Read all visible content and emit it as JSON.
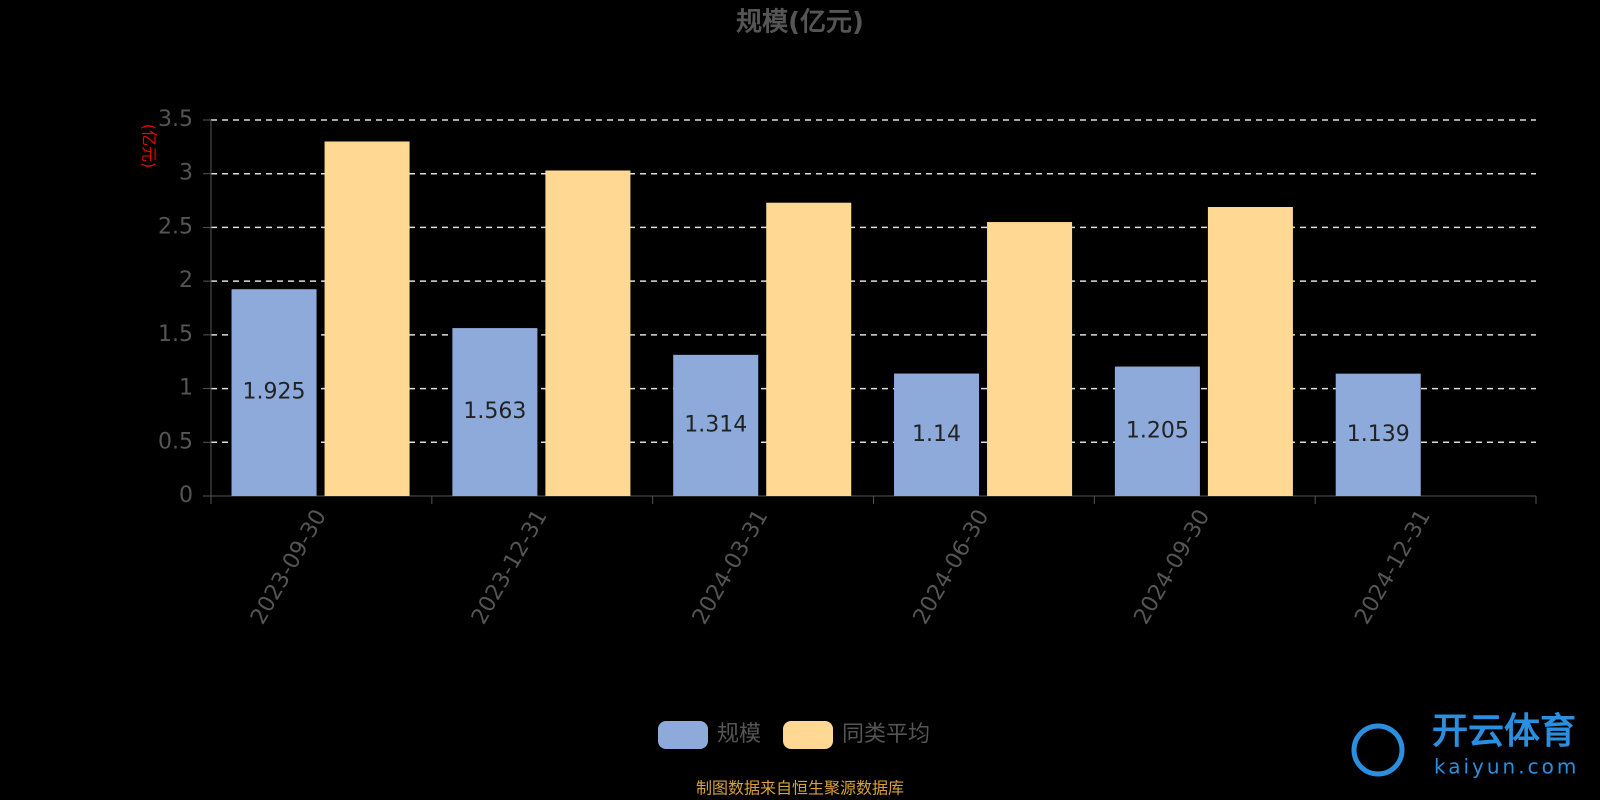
{
  "chart_data": {
    "type": "bar",
    "title": "规模(亿元)",
    "y_label": "(亿元)",
    "categories": [
      "2023-09-30",
      "2023-12-31",
      "2024-03-31",
      "2024-06-30",
      "2024-09-30",
      "2024-12-31"
    ],
    "series": [
      {
        "name": "规模",
        "color": "#8eaadb",
        "values": [
          1.925,
          1.563,
          1.314,
          1.14,
          1.205,
          1.139
        ],
        "show_labels": true
      },
      {
        "name": "同类平均",
        "color": "#ffd993",
        "values": [
          3.3,
          3.03,
          2.73,
          2.55,
          2.69,
          null
        ],
        "show_labels": false
      }
    ],
    "ylim": [
      0,
      3.5
    ],
    "yticks": [
      0,
      0.5,
      1,
      1.5,
      2,
      2.5,
      3,
      3.5
    ],
    "grid": true,
    "legend": "bottom",
    "source": "制图数据来自恒生聚源数据库",
    "watermark": {
      "brand": "开云体育",
      "site": "kaiyun.com"
    }
  }
}
